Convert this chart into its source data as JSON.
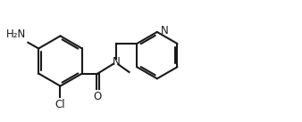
{
  "bg_color": "#ffffff",
  "line_color": "#1a1a1a",
  "line_width": 1.5,
  "font_size": 8.5,
  "figw": 3.38,
  "figh": 1.37,
  "dpi": 100,
  "xlim": [
    0.0,
    10.5
  ],
  "ylim": [
    0.2,
    4.0
  ]
}
